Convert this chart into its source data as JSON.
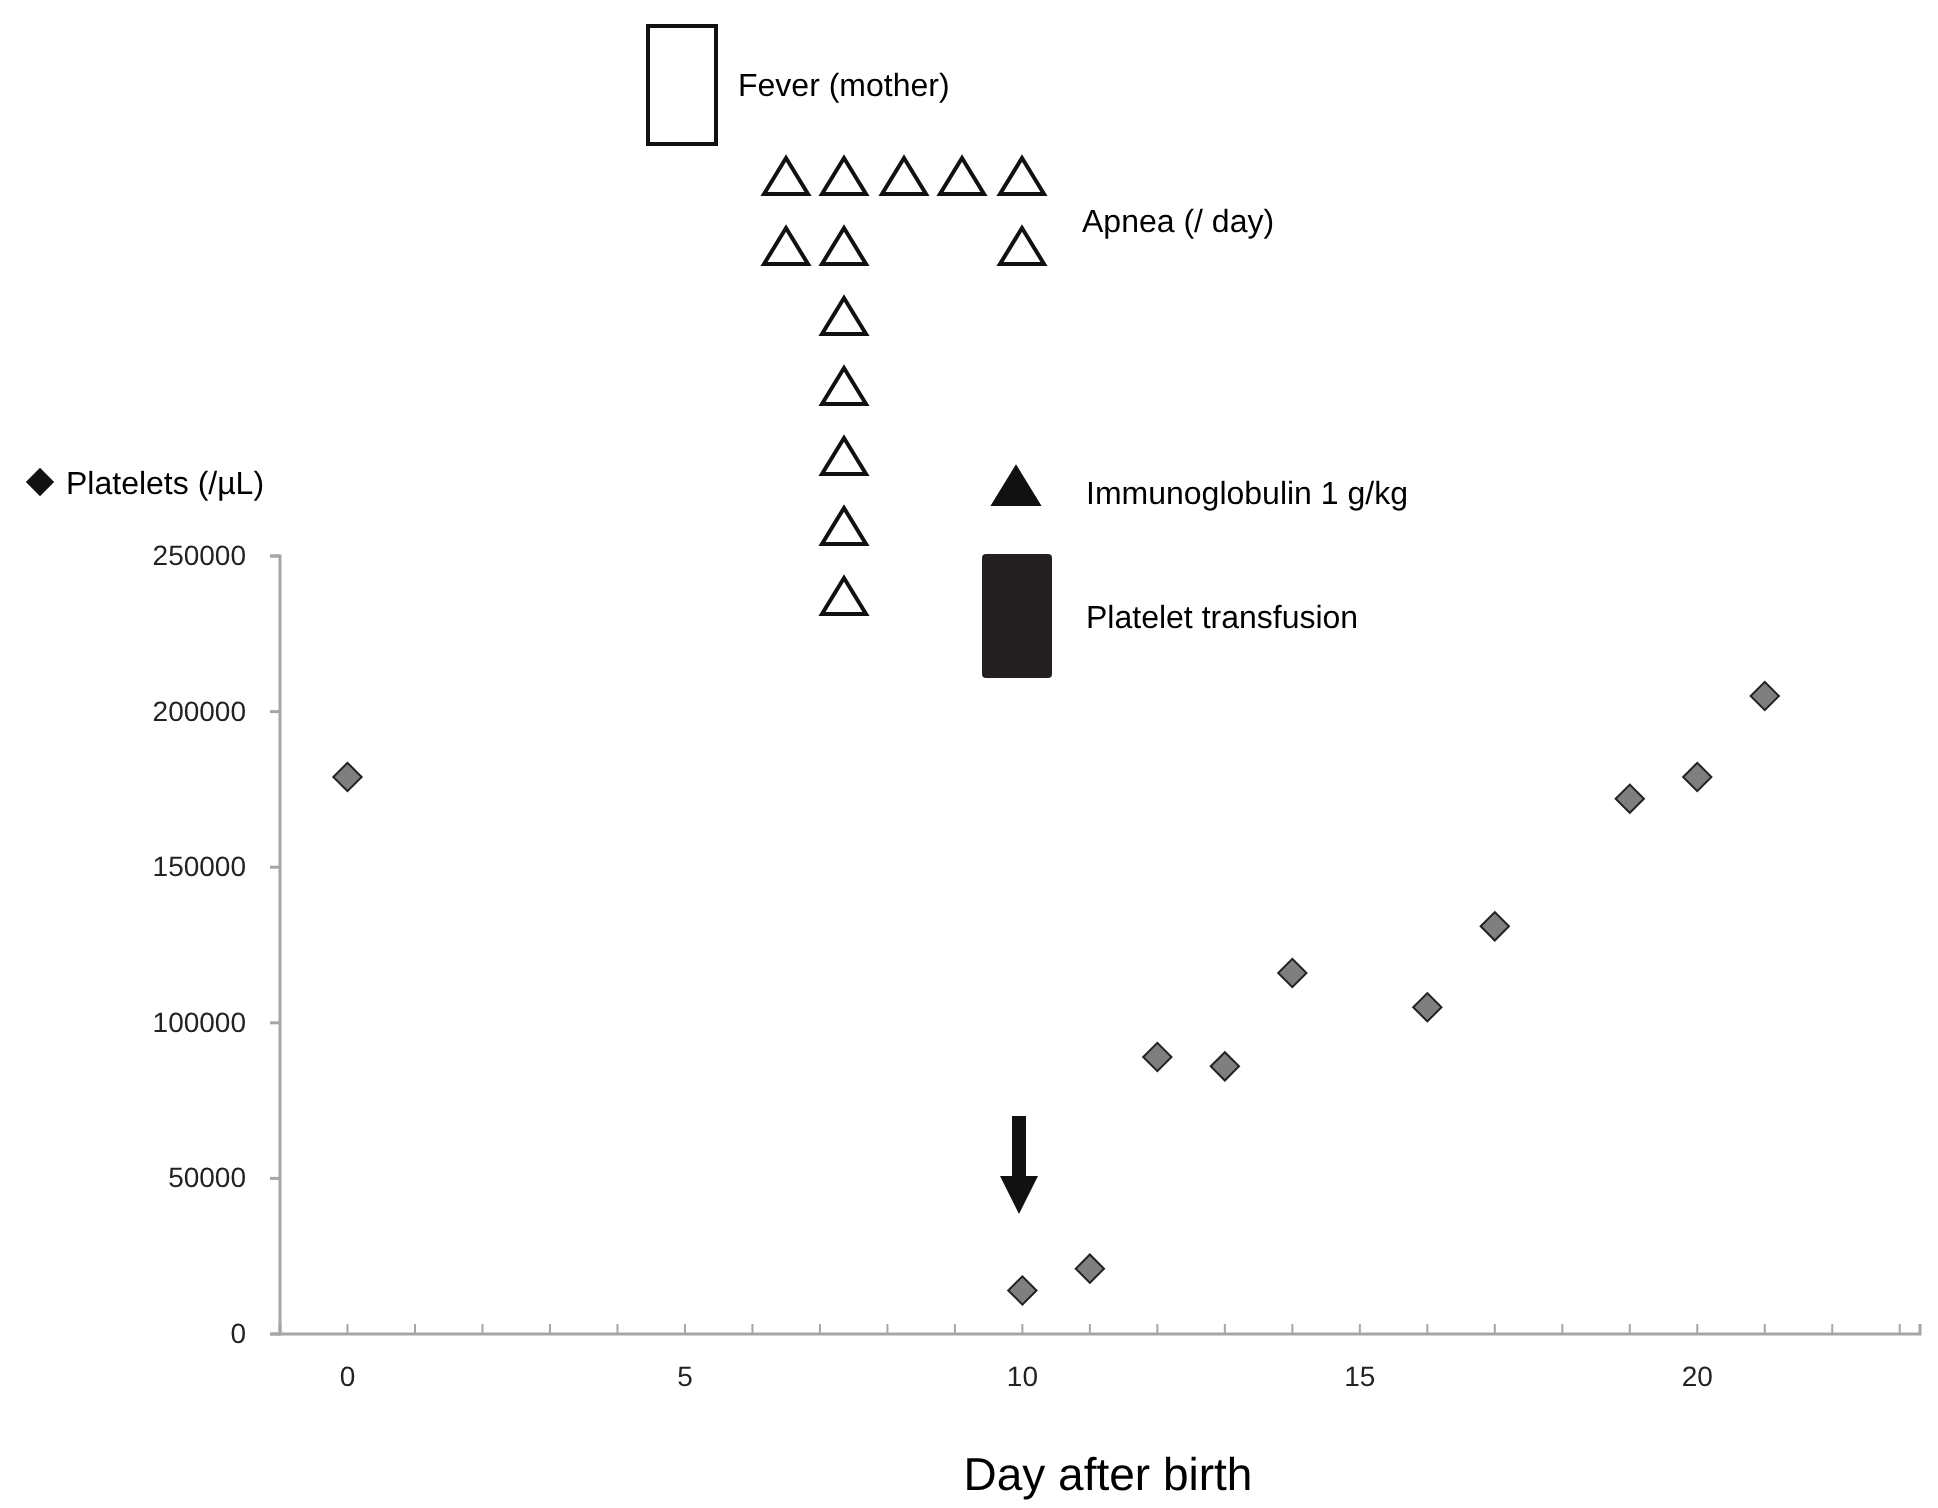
{
  "chart_data": {
    "type": "scatter",
    "xlabel": "Day after birth",
    "ylabel": "Platelets (/µL)",
    "x": [
      0,
      10,
      11,
      12,
      13,
      14,
      16,
      17,
      19,
      20,
      21
    ],
    "series": [
      {
        "color": "#7f7f7f",
        "values": [
          179000,
          14000,
          21000,
          89000,
          86000,
          116000,
          105000,
          131000,
          172000,
          179000,
          205000
        ]
      }
    ],
    "xlim": [
      -1,
      23.3
    ],
    "xticks": [
      0,
      {
        "value": 1,
        "label": null
      },
      {
        "value": 2,
        "label": null
      },
      {
        "value": 3,
        "label": null
      },
      {
        "value": 4,
        "label": null
      },
      5,
      {
        "value": 6,
        "label": null
      },
      {
        "value": 7,
        "label": null
      },
      {
        "value": 8,
        "label": null
      },
      {
        "value": 9,
        "label": null
      },
      10,
      {
        "value": 11,
        "label": null
      },
      {
        "value": 12,
        "label": null
      },
      {
        "value": 13,
        "label": null
      },
      {
        "value": 14,
        "label": null
      },
      15,
      {
        "value": 16,
        "label": null
      },
      {
        "value": 17,
        "label": null
      },
      {
        "value": 18,
        "label": null
      },
      {
        "value": 19,
        "label": null
      },
      20,
      {
        "value": 21,
        "label": null
      },
      {
        "value": 22,
        "label": null
      },
      {
        "value": 23,
        "label": null
      }
    ],
    "ylim": [
      0,
      250000
    ],
    "yticks": [
      0,
      50000,
      100000,
      150000,
      200000,
      250000
    ],
    "annotations": [
      "Fever (mother)",
      "Apnea (/ day)",
      "Immunoglobulin 1 g/kg",
      "Platelet transfusion"
    ],
    "marker": "diamond",
    "grid": false
  }
}
